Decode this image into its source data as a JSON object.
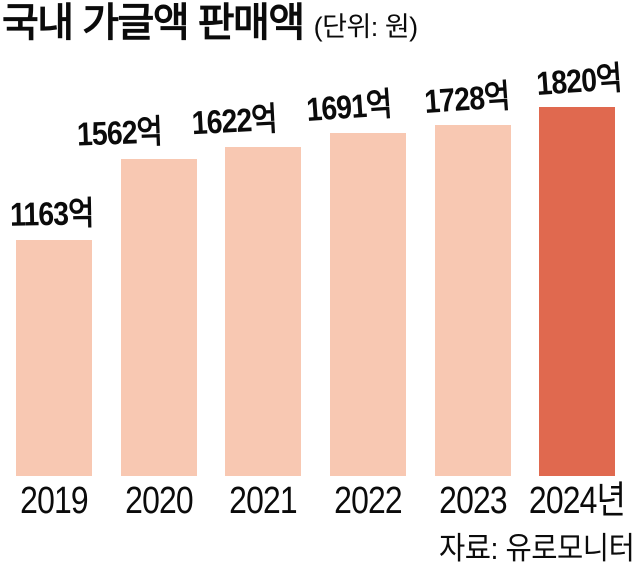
{
  "chart_data": {
    "type": "bar",
    "title": "국내 가글액 판매액",
    "unit": "(단위: 원)",
    "source": "자료: 유로모니터",
    "categories": [
      "2019",
      "2020",
      "2021",
      "2022",
      "2023",
      "2024년"
    ],
    "values": [
      1163,
      1562,
      1622,
      1691,
      1728,
      1820
    ],
    "value_labels": [
      "1163억",
      "1562억",
      "1622억",
      "1691억",
      "1728억",
      "1820억"
    ],
    "ylim": [
      0,
      1900
    ],
    "grid": false,
    "legend": false,
    "bar_color": "#f8c8b2",
    "highlight_color": "#e0694f",
    "highlight_index": 5,
    "text_color": "#0b0b0b"
  }
}
